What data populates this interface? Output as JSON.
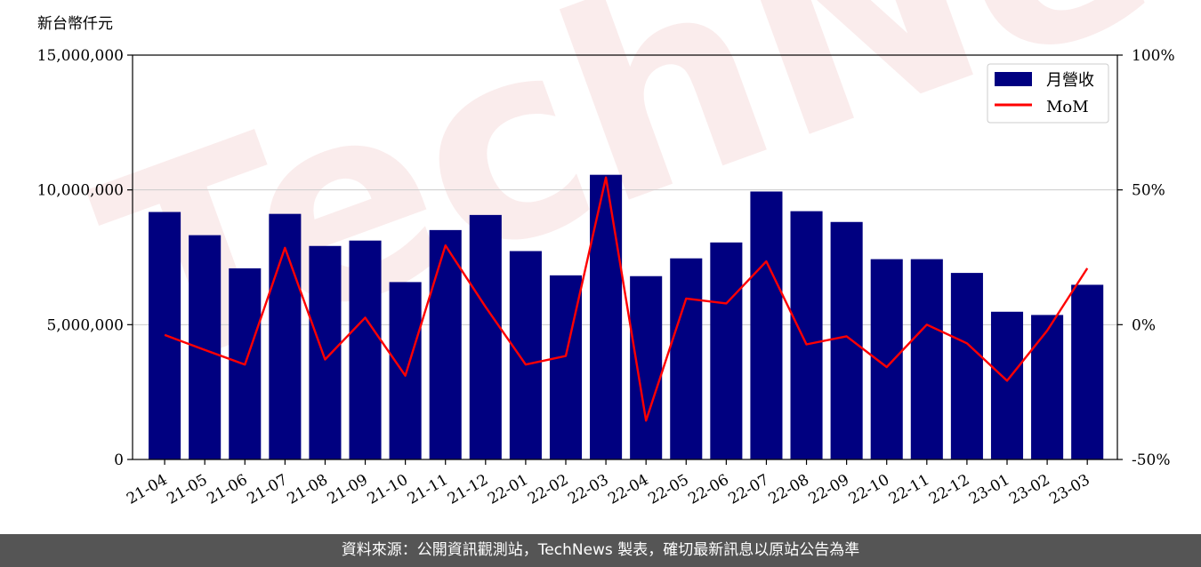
{
  "chart_data": {
    "type": "bar",
    "left_axis_unit": "新台幣仟元",
    "categories": [
      "21-04",
      "21-05",
      "21-06",
      "21-07",
      "21-08",
      "21-09",
      "21-10",
      "21-11",
      "21-12",
      "22-01",
      "22-02",
      "22-03",
      "22-04",
      "22-05",
      "22-06",
      "22-07",
      "22-08",
      "22-09",
      "22-10",
      "22-11",
      "22-12",
      "23-01",
      "23-02",
      "23-03"
    ],
    "series": [
      {
        "name": "月營收",
        "type": "bar",
        "axis": "left",
        "color": "#000080",
        "values": [
          9180000,
          8320000,
          7090000,
          9110000,
          7920000,
          8120000,
          6580000,
          8510000,
          9070000,
          7730000,
          6830000,
          10560000,
          6800000,
          7460000,
          8050000,
          9940000,
          9210000,
          8810000,
          7430000,
          7430000,
          6920000,
          5480000,
          5360000,
          6480000
        ]
      },
      {
        "name": "MoM",
        "type": "line",
        "axis": "right",
        "color": "#ff0000",
        "values": [
          -3.8,
          -9.4,
          -14.8,
          28.5,
          -12.9,
          2.6,
          -18.9,
          29.4,
          6.6,
          -14.8,
          -11.6,
          54.6,
          -35.6,
          9.7,
          7.9,
          23.5,
          -7.3,
          -4.3,
          -15.7,
          0.0,
          -6.9,
          -20.8,
          -2.2,
          20.9
        ]
      }
    ],
    "left_axis": {
      "min": 0,
      "max": 15000000,
      "ticks": [
        "0",
        "5,000,000",
        "10,000,000",
        "15,000,000"
      ]
    },
    "right_axis": {
      "min": -50,
      "max": 100,
      "ticks": [
        "-50%",
        "0%",
        "50%",
        "100%"
      ]
    },
    "grid": "horizontal",
    "legend_position": "top-right"
  },
  "watermark_text": "TechNews",
  "footer_text": "資料來源：公開資訊觀測站，TechNews 製表，確切最新訊息以原站公告為準"
}
